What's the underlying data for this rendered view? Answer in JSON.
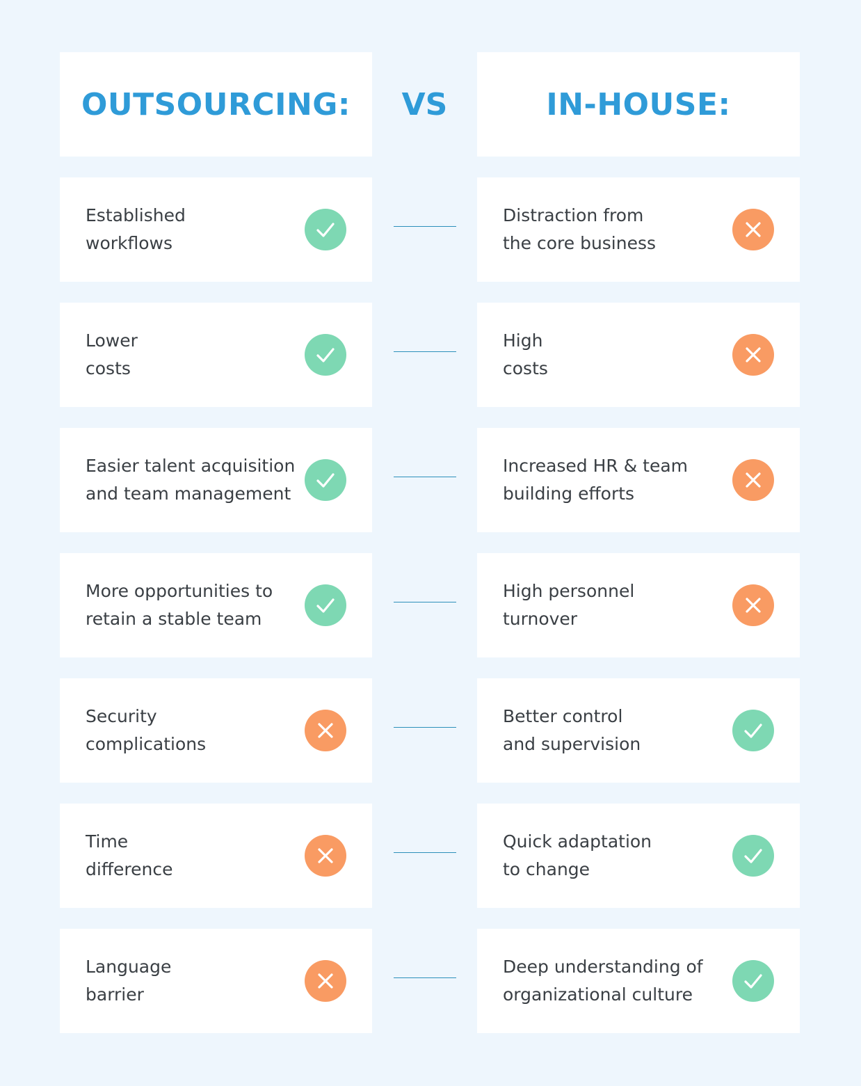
{
  "header": {
    "left_title": "OUTSOURCING:",
    "vs": "VS",
    "right_title": "IN-HOUSE:"
  },
  "colors": {
    "title_blue": "#2f9bd8",
    "pro_green": "#7ed8b3",
    "con_orange": "#f99b63",
    "background": "#eef6fd",
    "connector": "#2c8fba"
  },
  "rows": [
    {
      "left": {
        "line1": "Established",
        "line2": "workflows",
        "icon": "check-icon"
      },
      "right": {
        "line1": "Distraction from",
        "line2": "the core business",
        "icon": "cross-icon"
      }
    },
    {
      "left": {
        "line1": "Lower",
        "line2": "costs",
        "icon": "check-icon"
      },
      "right": {
        "line1": "High",
        "line2": "costs",
        "icon": "cross-icon"
      }
    },
    {
      "left": {
        "line1": "Easier talent acquisition",
        "line2": "and team management",
        "icon": "check-icon"
      },
      "right": {
        "line1": "Increased HR & team",
        "line2": "building efforts",
        "icon": "cross-icon"
      }
    },
    {
      "left": {
        "line1": "More opportunities to",
        "line2": "retain a stable team",
        "icon": "check-icon"
      },
      "right": {
        "line1": "High personnel",
        "line2": "turnover",
        "icon": "cross-icon"
      }
    },
    {
      "left": {
        "line1": "Security",
        "line2": "complications",
        "icon": "cross-icon"
      },
      "right": {
        "line1": "Better control",
        "line2": "and supervision",
        "icon": "check-icon"
      }
    },
    {
      "left": {
        "line1": "Time",
        "line2": "difference",
        "icon": "cross-icon"
      },
      "right": {
        "line1": "Quick adaptation",
        "line2": "to change",
        "icon": "check-icon"
      }
    },
    {
      "left": {
        "line1": "Language",
        "line2": "barrier",
        "icon": "cross-icon"
      },
      "right": {
        "line1": "Deep understanding of",
        "line2": "organizational culture",
        "icon": "check-icon"
      }
    }
  ]
}
